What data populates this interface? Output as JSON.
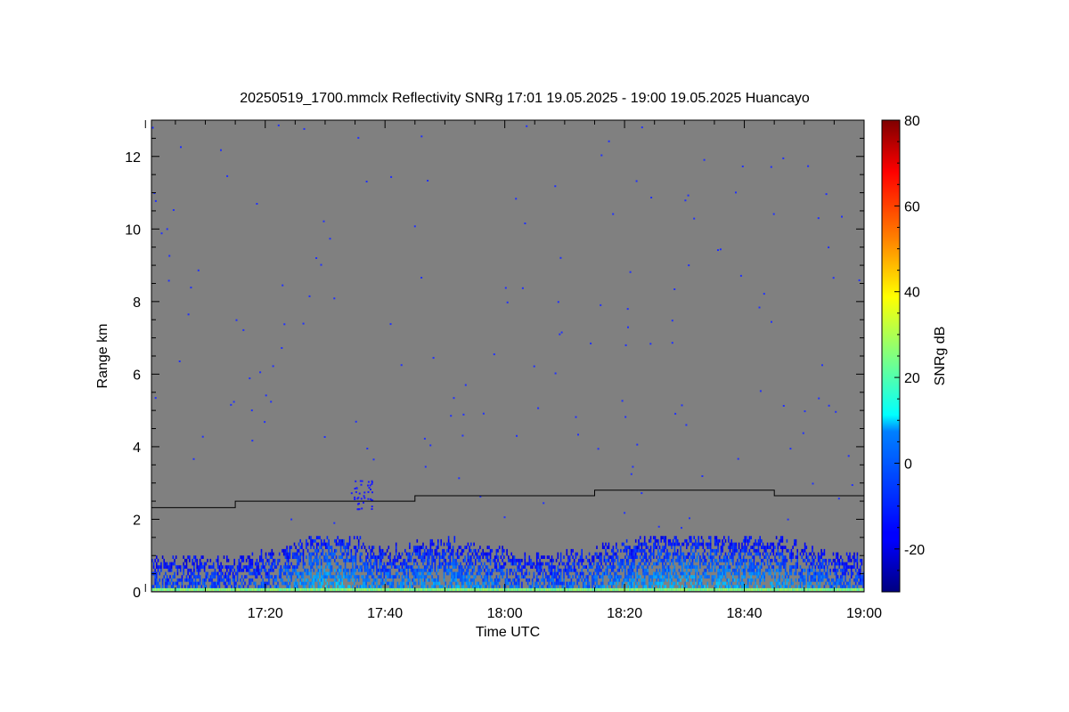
{
  "chart_data": {
    "type": "heatmap",
    "title": "20250519_1700.mmclx Reflectivity SNRg   17:01 19.05.2025 - 19:00 19.05.2025 Huancayo",
    "xlabel": "Time UTC",
    "ylabel": "Range km",
    "colorbar_label": "SNRg dB",
    "xlim": [
      "17:01",
      "19:00"
    ],
    "ylim": [
      0,
      13
    ],
    "clim": [
      -30,
      80
    ],
    "x_ticks": [
      "17:20",
      "17:40",
      "18:00",
      "18:20",
      "18:40",
      "19:00"
    ],
    "y_ticks": [
      0,
      2,
      4,
      6,
      8,
      10,
      12
    ],
    "colorbar_ticks": [
      -20,
      0,
      20,
      40,
      60,
      80
    ],
    "colormap": "jet",
    "background_color": "#808080",
    "black_line": [
      {
        "start": "17:01",
        "end": "17:15",
        "range_km": 2.32
      },
      {
        "start": "17:15",
        "end": "17:45",
        "range_km": 2.5
      },
      {
        "start": "17:45",
        "end": "18:15",
        "range_km": 2.65
      },
      {
        "start": "18:15",
        "end": "18:45",
        "range_km": 2.8
      },
      {
        "start": "18:45",
        "end": "19:00",
        "range_km": 2.65
      }
    ],
    "echo_layer": {
      "range_km": [
        0.1,
        1.5
      ],
      "snr_db": [
        -25,
        15
      ]
    }
  }
}
